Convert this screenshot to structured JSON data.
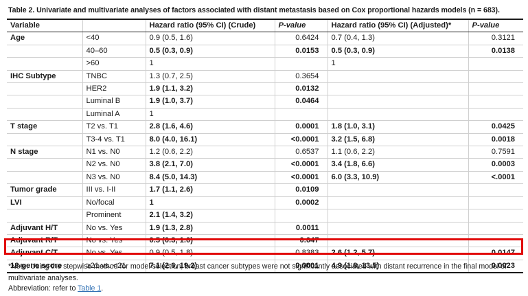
{
  "caption": "Table 2.  Univariate and multivariate analyses of factors associated with distant metastasis based on Cox proportional hazards models (n = 683).",
  "headers": [
    "Variable",
    "",
    "Hazard ratio (95% CI) (Crude)",
    "P-value",
    "Hazard ratio (95% CI) (Adjusted)*",
    "P-value"
  ],
  "rows": [
    {
      "variable": "Age",
      "level": "<40",
      "hr_crude": "0.9 (0.5, 1.6)",
      "p_crude": "0.6424",
      "hr_adj": "0.7 (0.4, 1.3)",
      "p_adj": "0.3121",
      "bold_crude": false,
      "bold_adj": false
    },
    {
      "variable": "",
      "level": "40–60",
      "hr_crude": "0.5 (0.3, 0.9)",
      "p_crude": "0.0153",
      "hr_adj": "0.5 (0.3, 0.9)",
      "p_adj": "0.0138",
      "bold_crude": true,
      "bold_adj": true
    },
    {
      "variable": "",
      "level": ">60",
      "hr_crude": "1",
      "p_crude": "",
      "hr_adj": "1",
      "p_adj": "",
      "bold_crude": false,
      "bold_adj": false
    },
    {
      "variable": "IHC Subtype",
      "level": "TNBC",
      "hr_crude": "1.3 (0.7, 2.5)",
      "p_crude": "0.3654",
      "hr_adj": "",
      "p_adj": "",
      "bold_crude": false,
      "bold_adj": false
    },
    {
      "variable": "",
      "level": "HER2",
      "hr_crude": "1.9 (1.1, 3.2)",
      "p_crude": "0.0132",
      "hr_adj": "",
      "p_adj": "",
      "bold_crude": true,
      "bold_adj": false
    },
    {
      "variable": "",
      "level": "Luminal B",
      "hr_crude": "1.9 (1.0, 3.7)",
      "p_crude": "0.0464",
      "hr_adj": "",
      "p_adj": "",
      "bold_crude": true,
      "bold_adj": false
    },
    {
      "variable": "",
      "level": "Luminal A",
      "hr_crude": "1",
      "p_crude": "",
      "hr_adj": "",
      "p_adj": "",
      "bold_crude": false,
      "bold_adj": false
    },
    {
      "variable": "T stage",
      "level": "T2 vs. T1",
      "hr_crude": "2.8 (1.6, 4.6)",
      "p_crude": "0.0001",
      "hr_adj": "1.8 (1.0, 3.1)",
      "p_adj": "0.0425",
      "bold_crude": true,
      "bold_adj": true
    },
    {
      "variable": "",
      "level": "T3-4 vs. T1",
      "hr_crude": "8.0 (4.0, 16.1)",
      "p_crude": "<0.0001",
      "hr_adj": "3.2 (1.5, 6.8)",
      "p_adj": "0.0018",
      "bold_crude": true,
      "bold_adj": true
    },
    {
      "variable": "N stage",
      "level": "N1 vs. N0",
      "hr_crude": "1.2 (0.6, 2.2)",
      "p_crude": "0.6537",
      "hr_adj": "1.1 (0.6, 2.2)",
      "p_adj": "0.7591",
      "bold_crude": false,
      "bold_adj": false
    },
    {
      "variable": "",
      "level": "N2 vs. N0",
      "hr_crude": "3.8 (2.1, 7.0)",
      "p_crude": "<0.0001",
      "hr_adj": "3.4 (1.8, 6.6)",
      "p_adj": "0.0003",
      "bold_crude": true,
      "bold_adj": true
    },
    {
      "variable": "",
      "level": "N3 vs. N0",
      "hr_crude": "8.4 (5.0, 14.3)",
      "p_crude": "<0.0001",
      "hr_adj": "6.0 (3.3, 10.9)",
      "p_adj": "<.0001",
      "bold_crude": true,
      "bold_adj": true
    },
    {
      "variable": "Tumor grade",
      "level": "III vs. I-II",
      "hr_crude": "1.7 (1.1, 2.6)",
      "p_crude": "0.0109",
      "hr_adj": "",
      "p_adj": "",
      "bold_crude": true,
      "bold_adj": false
    },
    {
      "variable": "LVI",
      "level": "No/focal",
      "hr_crude": "1",
      "p_crude": "0.0002",
      "hr_adj": "",
      "p_adj": "",
      "bold_crude": true,
      "bold_adj": false
    },
    {
      "variable": "",
      "level": "Prominent",
      "hr_crude": "2.1 (1.4, 3.2)",
      "p_crude": "",
      "hr_adj": "",
      "p_adj": "",
      "bold_crude": true,
      "bold_adj": false
    },
    {
      "variable": "Adjuvant H/T",
      "level": "No vs. Yes",
      "hr_crude": "1.9 (1.3, 2.8)",
      "p_crude": "0.0011",
      "hr_adj": "",
      "p_adj": "",
      "bold_crude": true,
      "bold_adj": false
    },
    {
      "variable": "Adjuvant R/T",
      "level": "No vs. Yes",
      "hr_crude": "0.5 (0.3, 1.0)",
      "p_crude": "0.047",
      "hr_adj": "",
      "p_adj": "",
      "bold_crude": true,
      "bold_adj": false
    },
    {
      "variable": "Adjuvant C/T",
      "level": "No vs. Yes",
      "hr_crude": "0.9 (0.5, 1.8)",
      "p_crude": "0.8383",
      "hr_adj": "2.6 (1.2, 5.7)",
      "p_adj": "0.0147",
      "bold_crude": false,
      "bold_adj": true
    },
    {
      "variable": "18-gene score",
      "level": "≥21 vs. <21",
      "hr_crude": "7.1 (2.6, 19.2)",
      "p_crude": "0.0001",
      "hr_adj": "4.9 (1.8, 13.5)",
      "p_adj": "0.0023",
      "bold_crude": true,
      "bold_adj": true
    }
  ],
  "highlight_color": "#e10a0a",
  "footnote": "*Note: Using the stepwise method for model selection, breast cancer subtypes were not significantly associated with distant recurrence in the final model of multivariate analyses.",
  "abbreviation": {
    "prefix": "Abbreviation: refer to ",
    "link_text": "Table 1",
    "suffix": "."
  }
}
